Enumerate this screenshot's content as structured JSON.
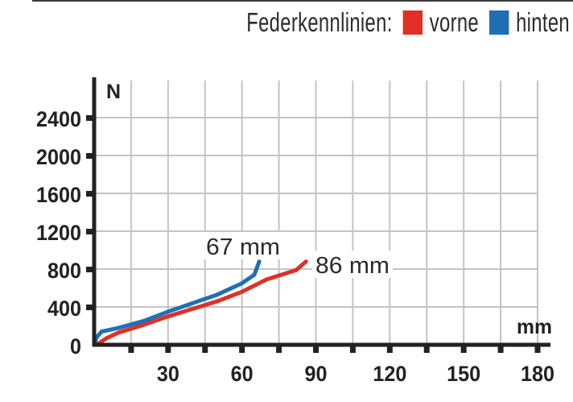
{
  "chart_data": {
    "type": "line",
    "title": "Federkennlinien",
    "legend": {
      "label": "Federkennlinien:",
      "position": "top-right",
      "entries": [
        {
          "name": "vorne",
          "color": "#e03026"
        },
        {
          "name": "hinten",
          "color": "#1f6fb5"
        }
      ]
    },
    "xlabel": "mm",
    "ylabel": "N",
    "xlim": [
      0,
      180
    ],
    "ylim": [
      0,
      2400
    ],
    "xticks": [
      15,
      30,
      45,
      60,
      75,
      90,
      105,
      120,
      135,
      150,
      165,
      180
    ],
    "xtick_labels": [
      "30",
      "60",
      "90",
      "120",
      "150",
      "180"
    ],
    "xtick_label_values": [
      30,
      60,
      90,
      120,
      150,
      180
    ],
    "yticks": [
      0,
      400,
      800,
      1200,
      1600,
      2000,
      2400
    ],
    "ytick_labels": [
      "0",
      "400",
      "800",
      "1200",
      "1600",
      "2000",
      "2400"
    ],
    "grid": true,
    "series": [
      {
        "name": "vorne",
        "color": "#e03026",
        "x": [
          1,
          5,
          10,
          20,
          30,
          40,
          50,
          60,
          70,
          82,
          86
        ],
        "y": [
          0,
          70,
          130,
          210,
          300,
          380,
          460,
          560,
          690,
          790,
          880
        ]
      },
      {
        "name": "hinten",
        "color": "#1f6fb5",
        "x": [
          0,
          1,
          3,
          10,
          20,
          30,
          40,
          50,
          60,
          65,
          67
        ],
        "y": [
          0,
          80,
          140,
          180,
          250,
          350,
          440,
          530,
          650,
          740,
          880
        ]
      }
    ],
    "annotations": [
      {
        "text": "67 mm",
        "series": "hinten",
        "x": 67,
        "y": 880
      },
      {
        "text": "86 mm",
        "series": "vorne",
        "x": 86,
        "y": 880
      }
    ]
  },
  "legend": {
    "label": "Federkennlinien:",
    "front": "vorne",
    "rear": "hinten"
  },
  "axis": {
    "y_unit": "N",
    "x_unit": "mm"
  }
}
